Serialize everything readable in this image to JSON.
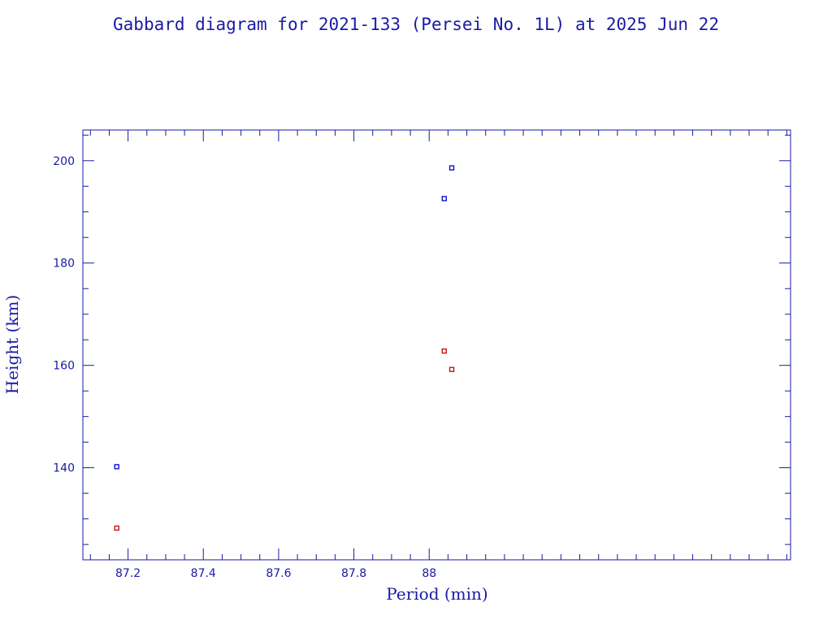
{
  "chart_data": {
    "type": "scatter",
    "title": "Gabbard diagram for 2021-133 (Persei No. 1L) at 2025 Jun 22",
    "xlabel": "Period (min)",
    "ylabel": "Height (km)",
    "xlim": [
      87.08,
      88.96
    ],
    "ylim": [
      122,
      206
    ],
    "x_ticks": [
      87.2,
      87.4,
      87.6,
      87.8,
      88.0
    ],
    "x_tick_labels": [
      "87.2",
      "87.4",
      "87.6",
      "87.8",
      "88"
    ],
    "x_minor_step": 0.05,
    "y_ticks": [
      140,
      160,
      180,
      200
    ],
    "y_tick_labels": [
      "140",
      "160",
      "180",
      "200"
    ],
    "y_minor_step": 5,
    "grid": false,
    "series": [
      {
        "color": "#0000cc",
        "points": [
          {
            "x": 87.17,
            "y": 140.2
          },
          {
            "x": 88.04,
            "y": 192.6
          },
          {
            "x": 88.06,
            "y": 198.6
          }
        ]
      },
      {
        "color": "#cc0000",
        "points": [
          {
            "x": 87.17,
            "y": 128.2
          },
          {
            "x": 88.04,
            "y": 162.8
          },
          {
            "x": 88.06,
            "y": 159.2
          }
        ]
      }
    ]
  },
  "colors": {
    "axis": "#1a1aa6",
    "background": "#ffffff"
  }
}
